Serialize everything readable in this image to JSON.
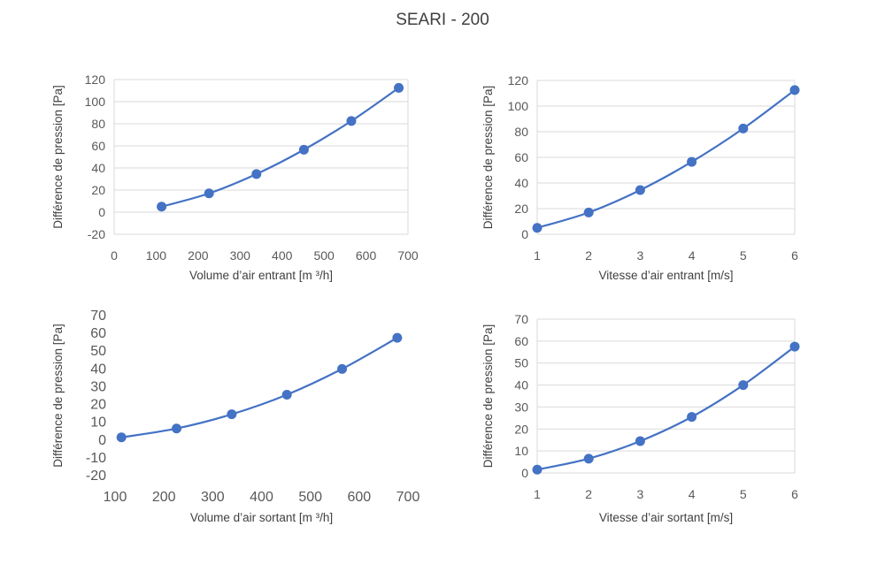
{
  "title": "SEARI - 200",
  "colors": {
    "series": "#4472c4",
    "grid": "#d9d9d9",
    "text": "#595959"
  },
  "chart_data": [
    {
      "type": "scatter",
      "smooth": true,
      "xlabel": "Volume d’air entrant [m ³/h]",
      "ylabel": "Différence de pression [Pa]",
      "xlim": [
        0,
        700
      ],
      "xticks": [
        0,
        100,
        200,
        300,
        400,
        500,
        600,
        700
      ],
      "ylim": [
        -20,
        120
      ],
      "yticks": [
        -20,
        0,
        20,
        40,
        60,
        80,
        100,
        120
      ],
      "grid": true,
      "series": [
        {
          "x": [
            113,
            226,
            339,
            452,
            565,
            678
          ],
          "y": [
            5,
            17,
            34.5,
            56.5,
            82.5,
            112.5
          ]
        }
      ]
    },
    {
      "type": "scatter",
      "smooth": true,
      "xlabel": "Vitesse d’air entrant [m/s]",
      "ylabel": "Différence de pression [Pa]",
      "xlim": [
        1,
        6
      ],
      "xticks": [
        1,
        2,
        3,
        4,
        5,
        6
      ],
      "ylim": [
        0,
        120
      ],
      "yticks": [
        0,
        20,
        40,
        60,
        80,
        100,
        120
      ],
      "grid": true,
      "series": [
        {
          "x": [
            1,
            2,
            3,
            4,
            5,
            6
          ],
          "y": [
            5,
            17,
            34.5,
            56.5,
            82.5,
            112.5
          ]
        }
      ]
    },
    {
      "type": "scatter",
      "smooth": true,
      "xlabel": "Volume d’air sortant [m ³/h]",
      "ylabel": "Différence de pression [Pa]",
      "xlim": [
        100,
        700
      ],
      "xticks": [
        100,
        200,
        300,
        400,
        500,
        600,
        700
      ],
      "ylim": [
        -20,
        70
      ],
      "yticks": [
        -20,
        -10,
        0,
        10,
        20,
        30,
        40,
        50,
        60,
        70
      ],
      "grid": false,
      "series": [
        {
          "x": [
            113,
            226,
            339,
            452,
            565,
            678
          ],
          "y": [
            1.5,
            6.5,
            14.5,
            25.5,
            40,
            57.5
          ]
        }
      ]
    },
    {
      "type": "scatter",
      "smooth": true,
      "xlabel": "Vitesse d’air sortant [m/s]",
      "ylabel": "Différence de pression [Pa]",
      "xlim": [
        1,
        6
      ],
      "xticks": [
        1,
        2,
        3,
        4,
        5,
        6
      ],
      "ylim": [
        0,
        70
      ],
      "yticks": [
        0,
        10,
        20,
        30,
        40,
        50,
        60,
        70
      ],
      "grid": true,
      "series": [
        {
          "x": [
            1,
            2,
            3,
            4,
            5,
            6
          ],
          "y": [
            1.5,
            6.5,
            14.5,
            25.5,
            40,
            57.5
          ]
        }
      ]
    }
  ]
}
